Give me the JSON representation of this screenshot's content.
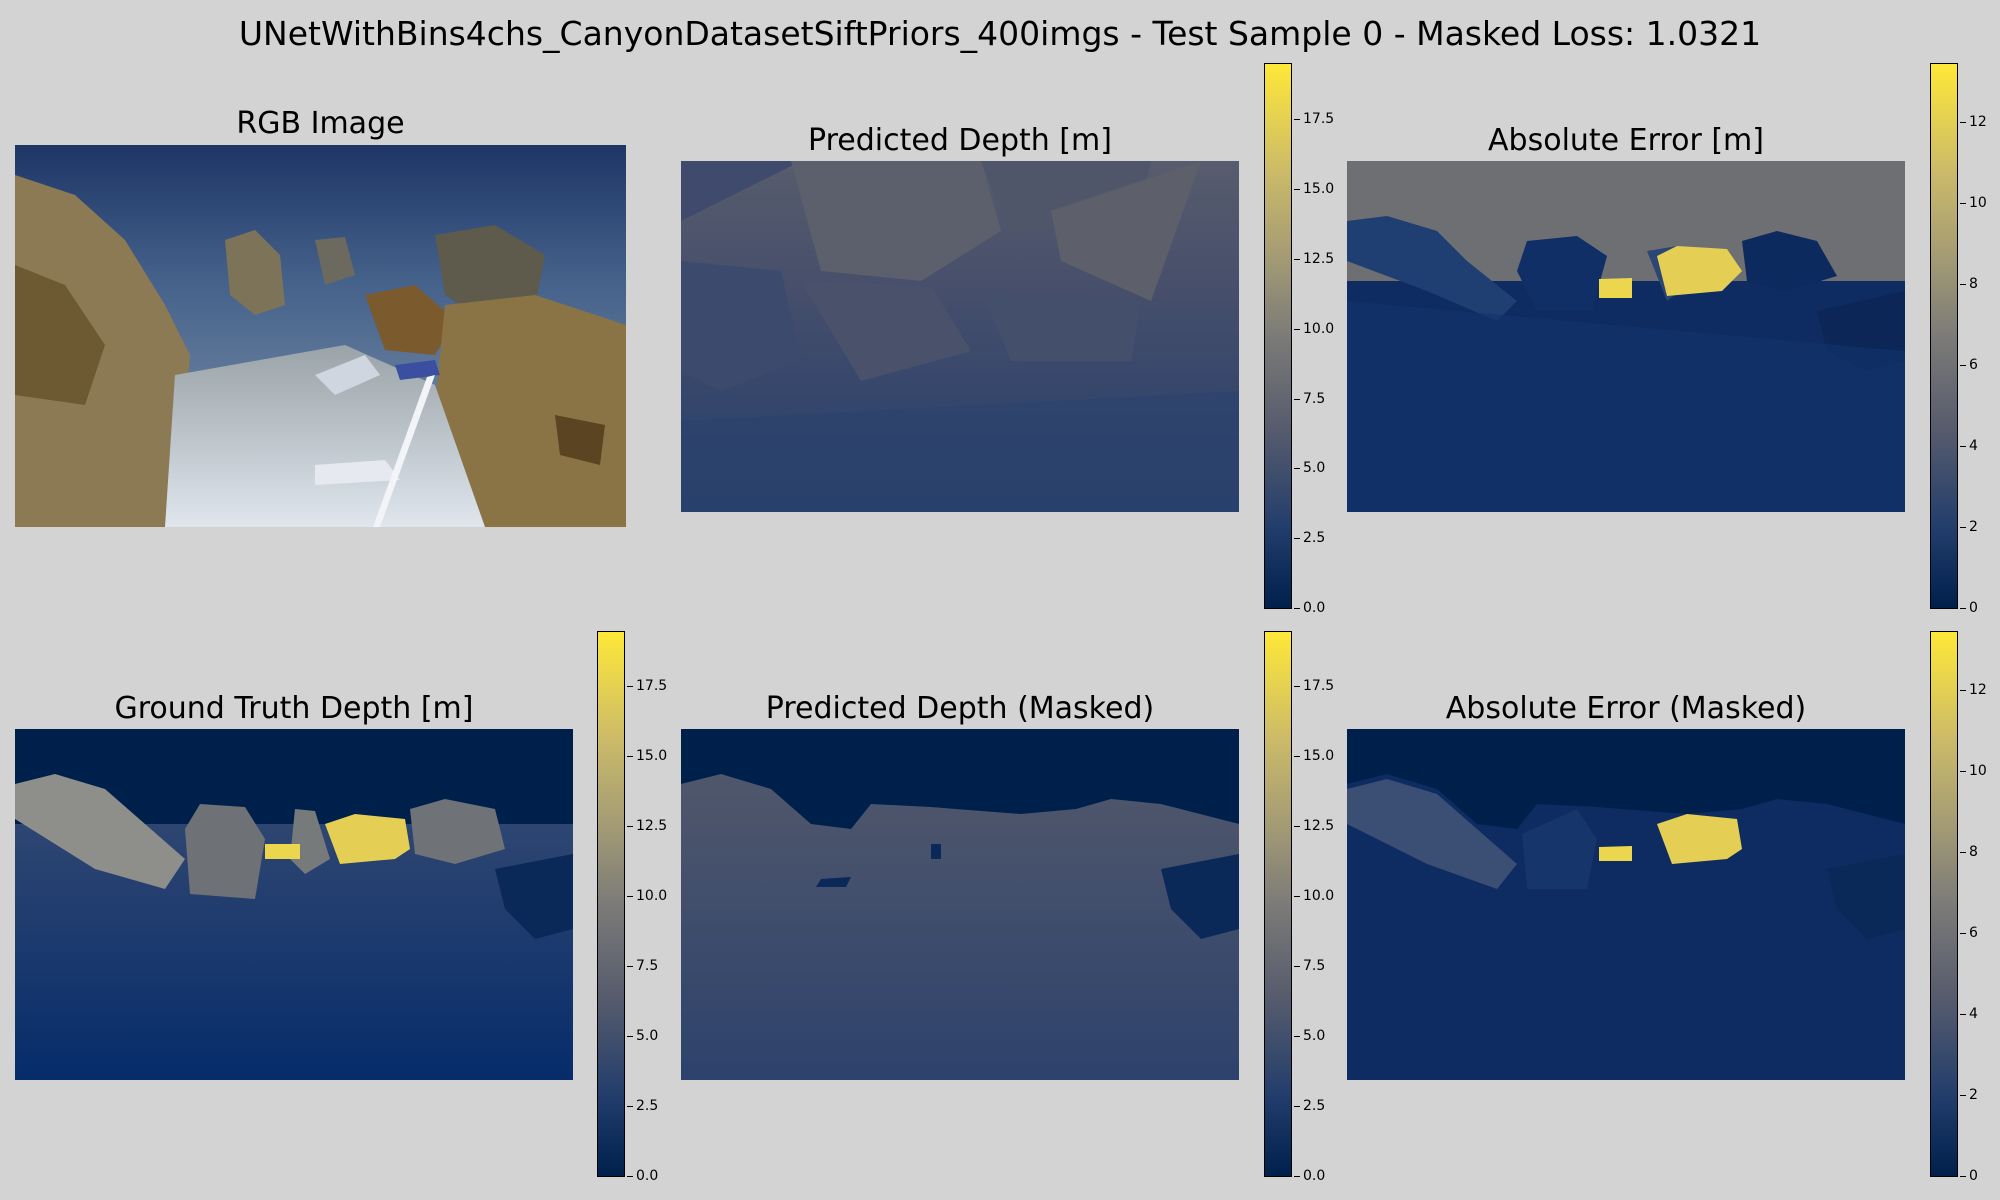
{
  "figure": {
    "title": "UNetWithBins4chs_CanyonDatasetSiftPriors_400imgs - Test Sample 0 - Masked Loss: 1.0321"
  },
  "chart_data": [
    {
      "type": "heatmap",
      "id": "rgb",
      "title": "RGB Image",
      "colorbar": false
    },
    {
      "type": "heatmap",
      "id": "pred",
      "title": "Predicted Depth [m]",
      "colormap": "cividis",
      "vmin": 0,
      "vmax": 19.5,
      "colorbar_ticks": [
        "0.0",
        "2.5",
        "5.0",
        "7.5",
        "10.0",
        "12.5",
        "15.0",
        "17.5"
      ]
    },
    {
      "type": "heatmap",
      "id": "err",
      "title": "Absolute Error [m]",
      "colormap": "cividis",
      "vmin": 0,
      "vmax": 13.5,
      "colorbar_ticks": [
        "0",
        "2",
        "4",
        "6",
        "8",
        "10",
        "12"
      ]
    },
    {
      "type": "heatmap",
      "id": "gt",
      "title": "Ground Truth Depth [m]",
      "colormap": "cividis",
      "vmin": 0,
      "vmax": 19.5,
      "colorbar_ticks": [
        "0.0",
        "2.5",
        "5.0",
        "7.5",
        "10.0",
        "12.5",
        "15.0",
        "17.5"
      ]
    },
    {
      "type": "heatmap",
      "id": "predm",
      "title": "Predicted Depth (Masked)",
      "colormap": "cividis",
      "vmin": 0,
      "vmax": 19.5,
      "colorbar_ticks": [
        "0.0",
        "2.5",
        "5.0",
        "7.5",
        "10.0",
        "12.5",
        "15.0",
        "17.5"
      ]
    },
    {
      "type": "heatmap",
      "id": "errm",
      "title": "Absolute Error (Masked)",
      "colormap": "cividis",
      "vmin": 0,
      "vmax": 13.5,
      "colorbar_ticks": [
        "0",
        "2",
        "4",
        "6",
        "8",
        "10",
        "12"
      ]
    }
  ]
}
